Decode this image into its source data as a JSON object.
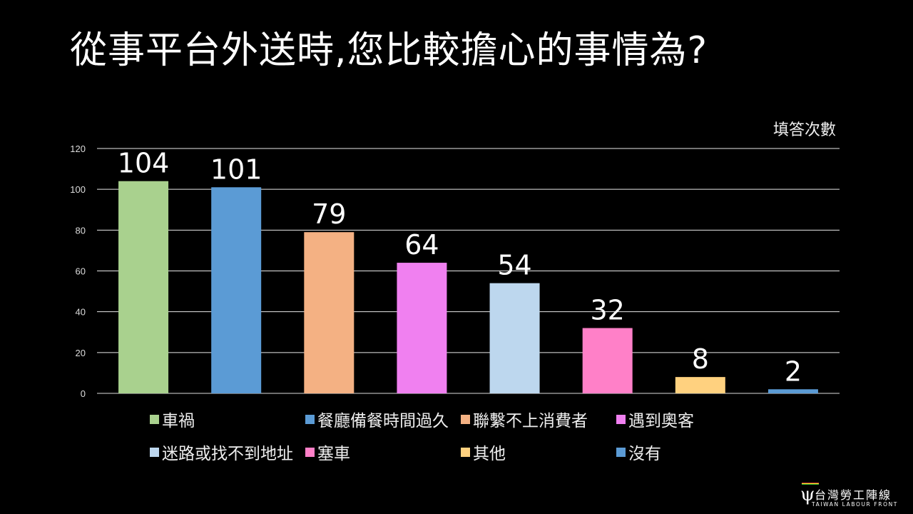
{
  "title": "從事平台外送時,您比較擔心的事情為?",
  "logo": {
    "text_cn": "台灣勞工陣線",
    "text_en": "TAIWAN LABOUR FRONT"
  },
  "chart_data": {
    "type": "bar",
    "ylabel": "填答次數",
    "ylim": [
      0,
      120
    ],
    "yticks": [
      0,
      20,
      40,
      60,
      80,
      100,
      120
    ],
    "grid": true,
    "legend_position": "bottom",
    "categories": [
      "車禍",
      "餐廳備餐時間過久",
      "聯繫不上消費者",
      "遇到奧客",
      "迷路或找不到地址",
      "塞車",
      "其他",
      "沒有"
    ],
    "values": [
      104,
      101,
      79,
      64,
      54,
      32,
      8,
      2
    ],
    "colors": [
      "#a9d18e",
      "#5b9bd5",
      "#f4b183",
      "#f080f0",
      "#bdd7ee",
      "#ff80c8",
      "#ffd17f",
      "#5b9bd5"
    ],
    "data_labels": true
  }
}
